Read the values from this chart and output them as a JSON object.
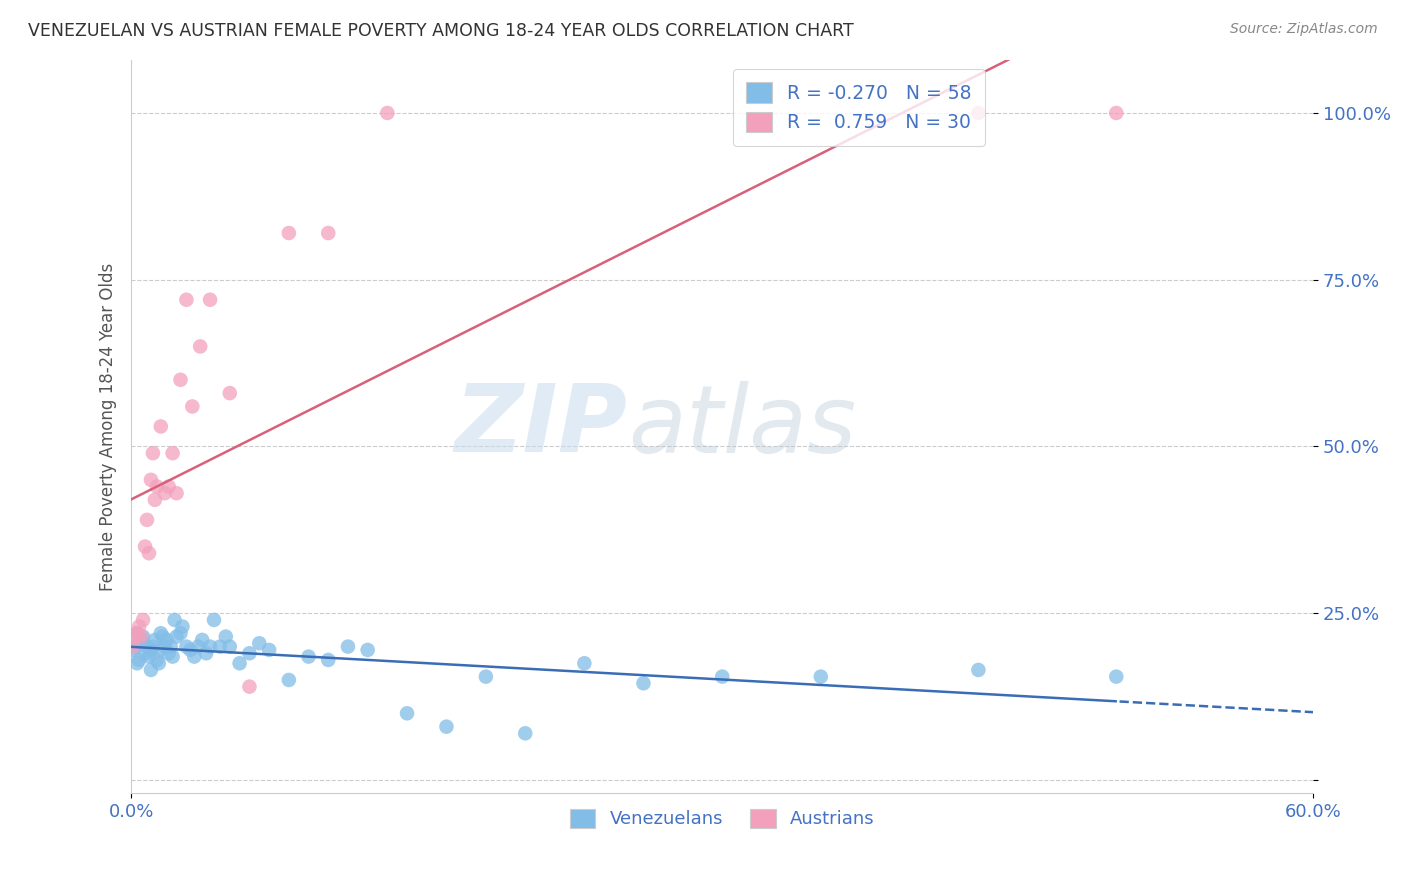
{
  "title": "VENEZUELAN VS AUSTRIAN FEMALE POVERTY AMONG 18-24 YEAR OLDS CORRELATION CHART",
  "source": "Source: ZipAtlas.com",
  "ylabel": "Female Poverty Among 18-24 Year Olds",
  "xlim": [
    0.0,
    0.6
  ],
  "ylim": [
    -0.02,
    1.08
  ],
  "yticks": [
    0.0,
    0.25,
    0.5,
    0.75,
    1.0
  ],
  "ytick_labels": [
    "",
    "25.0%",
    "50.0%",
    "75.0%",
    "100.0%"
  ],
  "xtick_vals": [
    0.0,
    0.6
  ],
  "xtick_labels": [
    "0.0%",
    "60.0%"
  ],
  "watermark_zip": "ZIP",
  "watermark_atlas": "atlas",
  "legend_line1": "R = -0.270   N = 58",
  "legend_line2": "R =  0.759   N = 30",
  "venezuelan_color": "#82BDE8",
  "austrian_color": "#F2A0BC",
  "trendline_venezuelan_color": "#3A6DB5",
  "trendline_austrian_color": "#D9607A",
  "venezuelan_x": [
    0.001,
    0.002,
    0.003,
    0.003,
    0.004,
    0.005,
    0.006,
    0.007,
    0.008,
    0.009,
    0.01,
    0.01,
    0.011,
    0.012,
    0.013,
    0.014,
    0.015,
    0.015,
    0.016,
    0.017,
    0.018,
    0.019,
    0.02,
    0.021,
    0.022,
    0.023,
    0.025,
    0.026,
    0.028,
    0.03,
    0.032,
    0.034,
    0.036,
    0.038,
    0.04,
    0.042,
    0.045,
    0.048,
    0.05,
    0.055,
    0.06,
    0.065,
    0.07,
    0.08,
    0.09,
    0.1,
    0.11,
    0.12,
    0.14,
    0.16,
    0.18,
    0.2,
    0.23,
    0.26,
    0.3,
    0.35,
    0.43,
    0.5
  ],
  "venezuelan_y": [
    0.195,
    0.2,
    0.175,
    0.22,
    0.18,
    0.21,
    0.215,
    0.19,
    0.2,
    0.185,
    0.195,
    0.165,
    0.2,
    0.21,
    0.18,
    0.175,
    0.22,
    0.195,
    0.215,
    0.2,
    0.21,
    0.19,
    0.2,
    0.185,
    0.24,
    0.215,
    0.22,
    0.23,
    0.2,
    0.195,
    0.185,
    0.2,
    0.21,
    0.19,
    0.2,
    0.24,
    0.2,
    0.215,
    0.2,
    0.175,
    0.19,
    0.205,
    0.195,
    0.15,
    0.185,
    0.18,
    0.2,
    0.195,
    0.1,
    0.08,
    0.155,
    0.07,
    0.175,
    0.145,
    0.155,
    0.155,
    0.165,
    0.155
  ],
  "austrian_x": [
    0.001,
    0.002,
    0.003,
    0.004,
    0.005,
    0.006,
    0.007,
    0.008,
    0.009,
    0.01,
    0.011,
    0.012,
    0.013,
    0.015,
    0.017,
    0.019,
    0.021,
    0.023,
    0.025,
    0.028,
    0.031,
    0.035,
    0.04,
    0.05,
    0.06,
    0.08,
    0.1,
    0.13,
    0.43,
    0.5
  ],
  "austrian_y": [
    0.2,
    0.215,
    0.22,
    0.23,
    0.215,
    0.24,
    0.35,
    0.39,
    0.34,
    0.45,
    0.49,
    0.42,
    0.44,
    0.53,
    0.43,
    0.44,
    0.49,
    0.43,
    0.6,
    0.72,
    0.56,
    0.65,
    0.72,
    0.58,
    0.14,
    0.82,
    0.82,
    1.0,
    1.0,
    1.0
  ]
}
